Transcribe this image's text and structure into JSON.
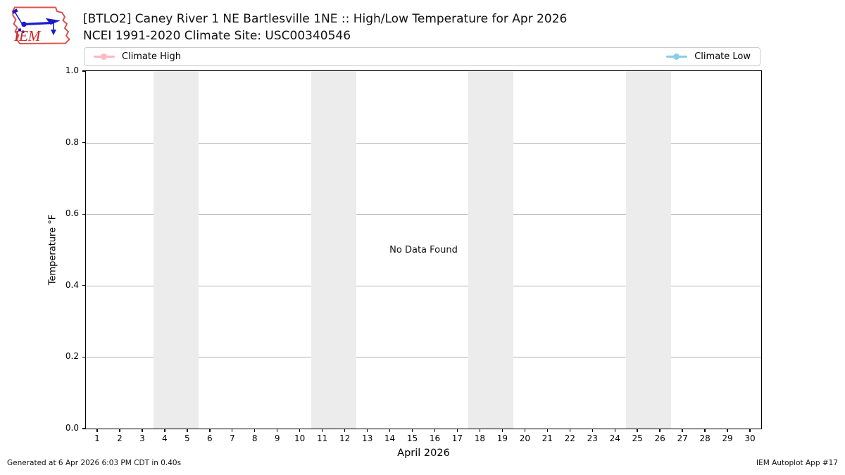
{
  "header": {
    "logo_text": "IEM",
    "title_line1": "[BTLO2] Caney River 1 NE Bartlesville 1NE :: High/Low Temperature for Apr 2026",
    "title_line2": "NCEI 1991-2020 Climate Site: USC00340546"
  },
  "legend": {
    "high_label": "Climate High",
    "low_label": "Climate Low",
    "high_color": "#ffb6c1",
    "low_color": "#87ceeb"
  },
  "chart_data": {
    "type": "line",
    "title": "[BTLO2] Caney River 1 NE Bartlesville 1NE :: High/Low Temperature for Apr 2026",
    "subtitle": "NCEI 1991-2020 Climate Site: USC00340546",
    "xlabel": "April 2026",
    "ylabel": "Temperature °F",
    "ylim": [
      0.0,
      1.0
    ],
    "yticks": [
      "0.0",
      "0.2",
      "0.4",
      "0.6",
      "0.8",
      "1.0"
    ],
    "xticks": [
      1,
      2,
      3,
      4,
      5,
      6,
      7,
      8,
      9,
      10,
      11,
      12,
      13,
      14,
      15,
      16,
      17,
      18,
      19,
      20,
      21,
      22,
      23,
      24,
      25,
      26,
      27,
      28,
      29,
      30
    ],
    "x_range_days": [
      1,
      30
    ],
    "series": [
      {
        "name": "Climate High",
        "color": "#ffb6c1",
        "x": [],
        "values": []
      },
      {
        "name": "Climate Low",
        "color": "#87ceeb",
        "x": [],
        "values": []
      }
    ],
    "no_data_text": "No Data Found",
    "grid": true,
    "legend_position": "top, spanning plot width (high left, low right)",
    "weekend_bands_days": [
      [
        4,
        5
      ],
      [
        11,
        12
      ],
      [
        18,
        19
      ],
      [
        25,
        26
      ]
    ],
    "band_color": "#ececec",
    "gridline_color": "#b3b3b3"
  },
  "footer": {
    "left": "Generated at 6 Apr 2026 6:03 PM CDT in 0.40s",
    "right": "IEM Autoplot App #17"
  }
}
